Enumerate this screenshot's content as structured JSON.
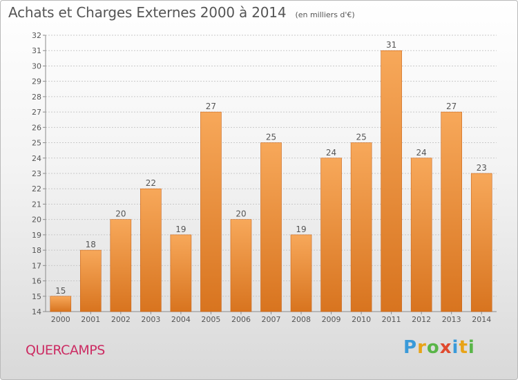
{
  "header": {
    "title": "Achats et Charges Externes 2000 à 2014",
    "subtitle": "(en milliers d'€)"
  },
  "footer": {
    "commune": "QUERCAMPS",
    "logo_letters": [
      "P",
      "r",
      "o",
      "x",
      "i",
      "t",
      "i"
    ],
    "logo_colors": [
      "#3a9ad9",
      "#e8a317",
      "#59b548",
      "#e04a2f",
      "#3a9ad9",
      "#e8a317",
      "#59b548"
    ]
  },
  "colors": {
    "bar_top": "#f7a85a",
    "bar_bottom": "#d8741f",
    "bar_edge": "#c9651a",
    "grid": "#c8c8c8",
    "axis": "#8a8a8a",
    "text": "#555555"
  },
  "chart_data": {
    "type": "bar",
    "categories": [
      "2000",
      "2001",
      "2002",
      "2003",
      "2004",
      "2005",
      "2006",
      "2007",
      "2008",
      "2009",
      "2010",
      "2011",
      "2012",
      "2013",
      "2014"
    ],
    "values": [
      15,
      18,
      20,
      22,
      19,
      27,
      20,
      25,
      19,
      24,
      25,
      31,
      24,
      27,
      23
    ],
    "title": "Achats et Charges Externes 2000 à 2014",
    "xlabel": "",
    "ylabel": "",
    "ylim": [
      14,
      32
    ],
    "yticks": [
      14,
      15,
      16,
      17,
      18,
      19,
      20,
      21,
      22,
      23,
      24,
      25,
      26,
      27,
      28,
      29,
      30,
      31,
      32
    ],
    "grid": true,
    "legend": "none"
  }
}
